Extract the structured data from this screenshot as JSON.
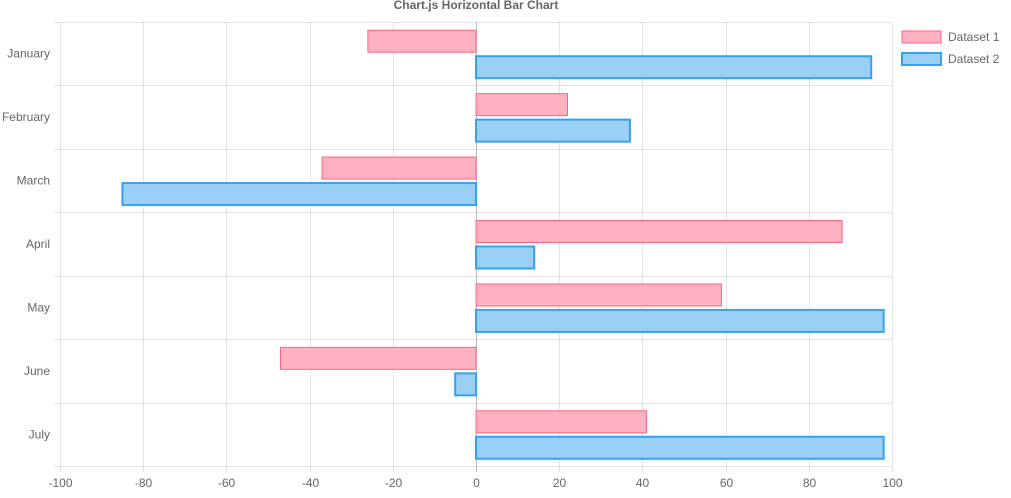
{
  "chart_data": {
    "type": "bar",
    "orientation": "horizontal",
    "title": "Chart.js Horizontal Bar Chart",
    "categories": [
      "January",
      "February",
      "March",
      "April",
      "May",
      "June",
      "July"
    ],
    "series": [
      {
        "name": "Dataset 1",
        "values": [
          -26,
          22,
          -37,
          88,
          59,
          -47,
          41
        ],
        "fill": "#ffb1c1",
        "stroke": "#ff6384"
      },
      {
        "name": "Dataset 2",
        "values": [
          95,
          37,
          -85,
          14,
          98,
          -5,
          98
        ],
        "fill": "#9ad0f5",
        "stroke": "#36a2eb"
      }
    ],
    "xlim": [
      -100,
      100
    ],
    "x_ticks": [
      -100,
      -80,
      -60,
      -40,
      -20,
      0,
      20,
      40,
      60,
      80,
      100
    ],
    "grid": true,
    "legend_position": "right"
  }
}
